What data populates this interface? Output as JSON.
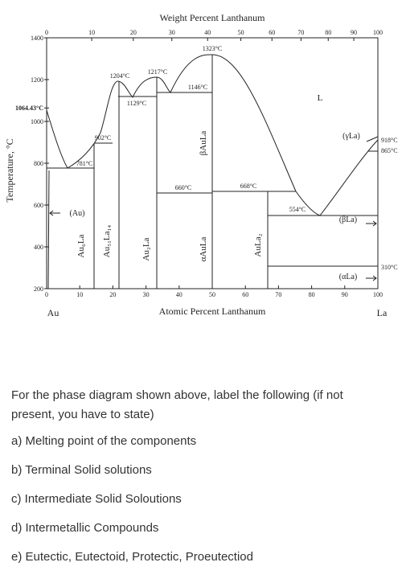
{
  "diagram": {
    "top_axis_label": "Weight Percent Lanthanum",
    "bottom_axis_label": "Atomic Percent Lanthanum",
    "y_axis_label": "Temperature, °C",
    "left_end": "Au",
    "right_end": "La",
    "top_ticks": [
      0,
      10,
      20,
      30,
      40,
      50,
      60,
      70,
      80,
      90,
      100
    ],
    "bottom_ticks": [
      0,
      10,
      20,
      30,
      40,
      50,
      60,
      70,
      80,
      90,
      100
    ],
    "y_ticks": [
      1400,
      1200,
      {
        "value": 1064.43,
        "label": "1064.43°C"
      },
      1000,
      800,
      600,
      400,
      200
    ],
    "labels": [
      "1323°C",
      "1217°C",
      "1204°C",
      "1146°C",
      "1129°C",
      "902°C",
      "781°C",
      "660°C",
      "668°C",
      "554°C",
      "L",
      "(γLa)",
      "918°C",
      "865°C",
      "(βLa)",
      "310°C",
      "(αLa)",
      "(Au)"
    ],
    "phases": [
      "Au₆La",
      "Au₅₁La₁₄",
      "Au₂La",
      "βAuLa",
      "αAuLa",
      "AuLa₂"
    ]
  },
  "question": {
    "prompt": "For the phase diagram shown above, label the following (if not present, you have to state)",
    "items": [
      "a) Melting point of the components",
      "b) Terminal Solid solutions",
      "c) Intermediate Solid Soloutions",
      "d) Intermetallic Compounds",
      "e) Eutectic, Eutectoid, Protectic, Proeutectiod"
    ]
  }
}
